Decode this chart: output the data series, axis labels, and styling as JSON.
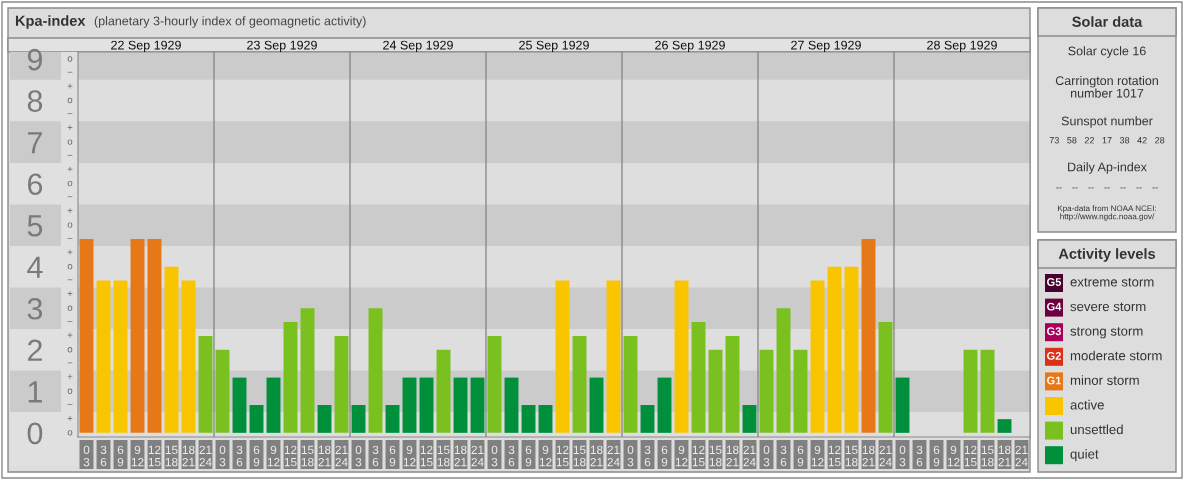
{
  "chart_data": [
    {
      "type": "other",
      "title": "Kpa-index",
      "subtitle": "(planetary 3-hourly index of geomagnetic activity)"
    },
    {
      "type": "bar",
      "categories": [
        "0\n3",
        "3\n6",
        "6\n9",
        "9\n12",
        "12\n15",
        "15\n18",
        "18\n21",
        "21\n24",
        "0\n3",
        "3\n6",
        "6\n9",
        "9\n12",
        "12\n15",
        "15\n18",
        "18\n21",
        "21\n24",
        "0\n3",
        "3\n6",
        "6\n9",
        "9\n12",
        "12\n15",
        "15\n18",
        "18\n21",
        "21\n24",
        "0\n3",
        "3\n6",
        "6\n9",
        "9\n12",
        "12\n15",
        "15\n18",
        "18\n21",
        "21\n24",
        "0\n3",
        "3\n6",
        "6\n9",
        "9\n12",
        "12\n15",
        "15\n18",
        "18\n21",
        "21\n24",
        "0\n3",
        "3\n6",
        "6\n9",
        "9\n12",
        "12\n15",
        "15\n18",
        "18\n21",
        "21\n24",
        "0\n3",
        "3\n6",
        "6\n9",
        "9\n12",
        "12\n15",
        "15\n18",
        "18\n21",
        "21\n24"
      ],
      "values": [
        4.67,
        3.67,
        3.67,
        4.67,
        4.67,
        4,
        3.67,
        2.33,
        2,
        1.33,
        0.67,
        1.33,
        2.67,
        3,
        0.67,
        2.33,
        0.67,
        3,
        0.67,
        1.33,
        1.33,
        2,
        1.33,
        1.33,
        2.33,
        1.33,
        0.67,
        0.67,
        3.67,
        2.33,
        1.33,
        3.67,
        2.33,
        0.67,
        1.33,
        3.67,
        2.67,
        2,
        2.33,
        0.67,
        2,
        3,
        2,
        3.67,
        4,
        4,
        4.67,
        2.67,
        1.33,
        0,
        0,
        0,
        2,
        2,
        0.33,
        0
      ],
      "colors": [
        "#e67817",
        "#f9c500",
        "#f9c500",
        "#e67817",
        "#e67817",
        "#f9c500",
        "#f9c500",
        "#7ac120",
        "#7ac120",
        "#00903c",
        "#00903c",
        "#00903c",
        "#7ac120",
        "#7ac120",
        "#00903c",
        "#7ac120",
        "#00903c",
        "#7ac120",
        "#00903c",
        "#00903c",
        "#00903c",
        "#7ac120",
        "#00903c",
        "#00903c",
        "#7ac120",
        "#00903c",
        "#00903c",
        "#00903c",
        "#f9c500",
        "#7ac120",
        "#00903c",
        "#f9c500",
        "#7ac120",
        "#00903c",
        "#00903c",
        "#f9c500",
        "#7ac120",
        "#7ac120",
        "#7ac120",
        "#00903c",
        "#7ac120",
        "#7ac120",
        "#7ac120",
        "#f9c500",
        "#f9c500",
        "#f9c500",
        "#e67817",
        "#7ac120",
        "#00903c",
        "#00903c",
        "#00903c",
        "#00903c",
        "#7ac120",
        "#7ac120",
        "#00903c",
        "#00903c"
      ],
      "annotations": [
        "22 Sep 1929",
        "23 Sep 1929",
        "24 Sep 1929",
        "25 Sep 1929",
        "26 Sep 1929",
        "27 Sep 1929",
        "28 Sep 1929"
      ],
      "ylim": [
        -0.1,
        9.17
      ],
      "yticks": [
        0,
        1,
        2,
        3,
        4,
        5,
        6,
        7,
        8,
        9
      ],
      "bands": [
        {
          "axis": "y",
          "from": 0.5,
          "to": 1.5,
          "color": "#cbcbcb"
        },
        {
          "axis": "y",
          "from": 2.5,
          "to": 3.5,
          "color": "#cbcbcb"
        },
        {
          "axis": "y",
          "from": 4.5,
          "to": 5.5,
          "color": "#cbcbcb"
        },
        {
          "axis": "y",
          "from": 6.5,
          "to": 7.5,
          "color": "#cbcbcb"
        },
        {
          "axis": "y",
          "from": 8.5,
          "to": 9.17,
          "color": "#cbcbcb"
        }
      ]
    },
    {
      "type": "other",
      "title": "Solar data",
      "annotations": [
        "Solar cycle 16",
        "Carrington rotation\nnumber 1017",
        "Sunspot number",
        "73   58   22   17   38   42   28",
        "Daily Ap-index",
        "--    --    --    --    --    --    --",
        "Kpa-data from NOAA NCEI:\nhttp://www.ngdc.noaa.gov/"
      ]
    },
    {
      "type": "other",
      "title": "Activity levels",
      "categories": [
        "extreme storm",
        "severe storm",
        "strong storm",
        "moderate storm",
        "minor storm",
        "active",
        "unsettled",
        "quiet"
      ],
      "colors": [
        "#4a0030",
        "#6d0040",
        "#a8005a",
        "#dc3018",
        "#e67817",
        "#f9c500",
        "#7ac120",
        "#00903c"
      ],
      "annotations": [
        "G5",
        "G4",
        "G3",
        "G2",
        "G1"
      ]
    },
    {
      "type": "other",
      "annotations": [
        "o",
        "−",
        "+",
        "o",
        "−",
        "+",
        "o",
        "−",
        "+",
        "o",
        "−",
        "+",
        "o",
        "−",
        "+",
        "o",
        "−",
        "+",
        "o",
        "−",
        "+",
        "o",
        "−",
        "+",
        "o",
        "−",
        "+",
        "o"
      ]
    }
  ]
}
